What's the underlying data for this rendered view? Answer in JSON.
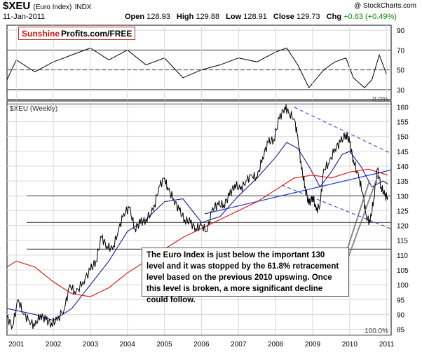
{
  "header": {
    "symbol": "$XEU",
    "name": "(Euro Index)",
    "exchange": "INDX",
    "date": "11-Jan-2011",
    "credit": "@ StockCharts.com",
    "open_label": "Open",
    "open": "128.93",
    "high_label": "High",
    "high": "129.88",
    "low_label": "Low",
    "low": "128.91",
    "close_label": "Close",
    "close": "129.73",
    "chg_label": "Chg",
    "chg": "+0.63 (+0.49%)"
  },
  "logo": {
    "part1": "Sunshine",
    "part2": "Profits.com/FREE"
  },
  "annotation": "The Euro Index is just below the important 130 level and it was stopped by the 61.8% retracement level based on the previous 2010 upswing. Once this level is broken, a more significant decline could follow.",
  "colors": {
    "price": "#000000",
    "ma_short": "#1a1aa0",
    "ma_long": "#e01010",
    "trend": "#1f3ad0",
    "grid": "#d8d8d8",
    "fib": "#555555"
  },
  "chart_data": [
    {
      "type": "line",
      "panel": "rsi",
      "y_ticks": [
        30,
        50,
        70,
        90
      ],
      "ylim": [
        20,
        95
      ],
      "reference_lines": [
        30,
        50,
        70
      ],
      "x": [
        2000.75,
        2001.0,
        2001.5,
        2002.0,
        2002.5,
        2003.0,
        2003.5,
        2004.0,
        2004.5,
        2005.0,
        2005.5,
        2006.0,
        2006.5,
        2007.0,
        2007.5,
        2008.0,
        2008.3,
        2008.6,
        2008.9,
        2009.3,
        2009.6,
        2009.9,
        2010.1,
        2010.4,
        2010.6,
        2010.8,
        2011.0
      ],
      "values": [
        40,
        60,
        48,
        58,
        65,
        72,
        60,
        70,
        55,
        62,
        42,
        50,
        55,
        62,
        58,
        68,
        72,
        55,
        32,
        50,
        58,
        62,
        42,
        32,
        40,
        65,
        45
      ]
    },
    {
      "type": "line",
      "panel": "price",
      "label": "$XEU (Weekly)",
      "x_ticks": [
        "2001",
        "2002",
        "2003",
        "2004",
        "2005",
        "2006",
        "2007",
        "2008",
        "2009",
        "2010",
        "2011"
      ],
      "y_ticks": [
        85,
        90,
        95,
        100,
        105,
        110,
        115,
        120,
        125,
        130,
        135,
        140,
        145,
        150,
        155,
        160
      ],
      "ylim": [
        83,
        162
      ],
      "series": [
        {
          "role": "price",
          "x": [
            2000.75,
            2000.9,
            2001.05,
            2001.2,
            2001.35,
            2001.5,
            2001.65,
            2001.8,
            2001.95,
            2002.1,
            2002.3,
            2002.45,
            2002.6,
            2002.8,
            2003.0,
            2003.15,
            2003.3,
            2003.45,
            2003.6,
            2003.75,
            2003.9,
            2004.05,
            2004.2,
            2004.35,
            2004.5,
            2004.7,
            2004.85,
            2005.0,
            2005.1,
            2005.25,
            2005.4,
            2005.55,
            2005.7,
            2005.85,
            2006.0,
            2006.15,
            2006.3,
            2006.45,
            2006.6,
            2006.75,
            2006.9,
            2007.05,
            2007.2,
            2007.35,
            2007.5,
            2007.65,
            2007.8,
            2007.95,
            2008.1,
            2008.25,
            2008.35,
            2008.5,
            2008.6,
            2008.7,
            2008.8,
            2008.9,
            2009.0,
            2009.1,
            2009.2,
            2009.3,
            2009.45,
            2009.6,
            2009.75,
            2009.9,
            2010.0,
            2010.1,
            2010.25,
            2010.35,
            2010.45,
            2010.55,
            2010.65,
            2010.75,
            2010.85,
            2010.95,
            2011.03
          ],
          "values": [
            89,
            86,
            95,
            90,
            88,
            86,
            90,
            88,
            87,
            88,
            92,
            100,
            97,
            101,
            105,
            108,
            116,
            113,
            112,
            118,
            124,
            126,
            119,
            121,
            122,
            125,
            133,
            136,
            132,
            129,
            125,
            122,
            121,
            119,
            120,
            118,
            126,
            127,
            127,
            130,
            134,
            132,
            135,
            137,
            136,
            143,
            148,
            149,
            156,
            160,
            158,
            156,
            150,
            139,
            133,
            127,
            130,
            125,
            127,
            139,
            141,
            146,
            148,
            151,
            148,
            142,
            136,
            131,
            123,
            121,
            129,
            139,
            133,
            130,
            129.73
          ]
        },
        {
          "role": "short_moving_average",
          "x": [
            2000.75,
            2001.5,
            2002.0,
            2002.5,
            2003.0,
            2003.5,
            2004.0,
            2004.5,
            2005.0,
            2005.5,
            2006.0,
            2006.5,
            2007.0,
            2007.5,
            2008.0,
            2008.3,
            2008.6,
            2008.9,
            2009.2,
            2009.5,
            2009.8,
            2010.0,
            2010.3,
            2010.6,
            2010.9,
            2011.03
          ],
          "values": [
            92,
            90,
            88,
            92,
            100,
            108,
            118,
            122,
            128,
            129,
            121,
            123,
            130,
            136,
            143,
            148,
            146,
            140,
            133,
            138,
            144,
            145,
            140,
            133,
            135,
            134
          ]
        },
        {
          "role": "long_moving_average",
          "x": [
            2000.75,
            2001.0,
            2001.5,
            2002.0,
            2002.5,
            2003.0,
            2003.5,
            2004.0,
            2004.5,
            2005.0,
            2005.5,
            2006.0,
            2006.5,
            2007.0,
            2007.5,
            2008.0,
            2008.5,
            2009.0,
            2009.5,
            2010.0,
            2010.5,
            2011.03
          ],
          "values": [
            106,
            108,
            106,
            101,
            97,
            96,
            99,
            104,
            108,
            112,
            116,
            119,
            122,
            125,
            128,
            132,
            136,
            137,
            136,
            138,
            139,
            137
          ]
        }
      ],
      "fibonacci_levels": [
        {
          "label": "0.0%",
          "value": 161
        },
        {
          "label": "100.0%",
          "value": 83
        }
      ]
    }
  ]
}
